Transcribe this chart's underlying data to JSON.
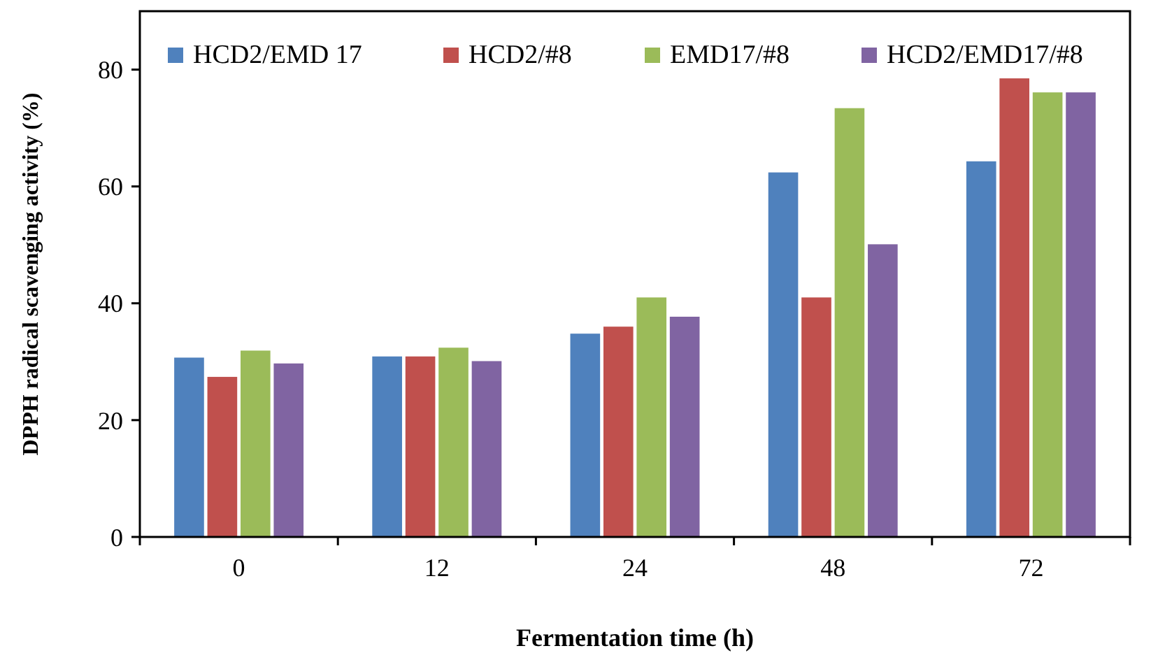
{
  "chart_data": {
    "type": "bar",
    "xlabel": "Fermentation time (h)",
    "ylabel": "DPPH radical scavenging activity (%)",
    "categories": [
      "0",
      "12",
      "24",
      "48",
      "72"
    ],
    "series": [
      {
        "name": "HCD2/EMD 17",
        "color": "#4f81bd",
        "values": [
          30.7,
          30.9,
          34.8,
          62.4,
          64.3
        ]
      },
      {
        "name": "HCD2/#8",
        "color": "#c0504d",
        "values": [
          27.4,
          30.9,
          36.0,
          41.0,
          78.5
        ]
      },
      {
        "name": "EMD17/#8",
        "color": "#9bbb59",
        "values": [
          31.9,
          32.4,
          41.0,
          73.4,
          76.1
        ]
      },
      {
        "name": "HCD2/EMD17/#8",
        "color": "#8064a2",
        "values": [
          29.7,
          30.1,
          37.7,
          50.1,
          76.1
        ]
      }
    ],
    "ylim": [
      0,
      90
    ],
    "yticks": [
      0,
      20,
      40,
      60,
      80
    ],
    "grid": false,
    "legend": "top"
  }
}
